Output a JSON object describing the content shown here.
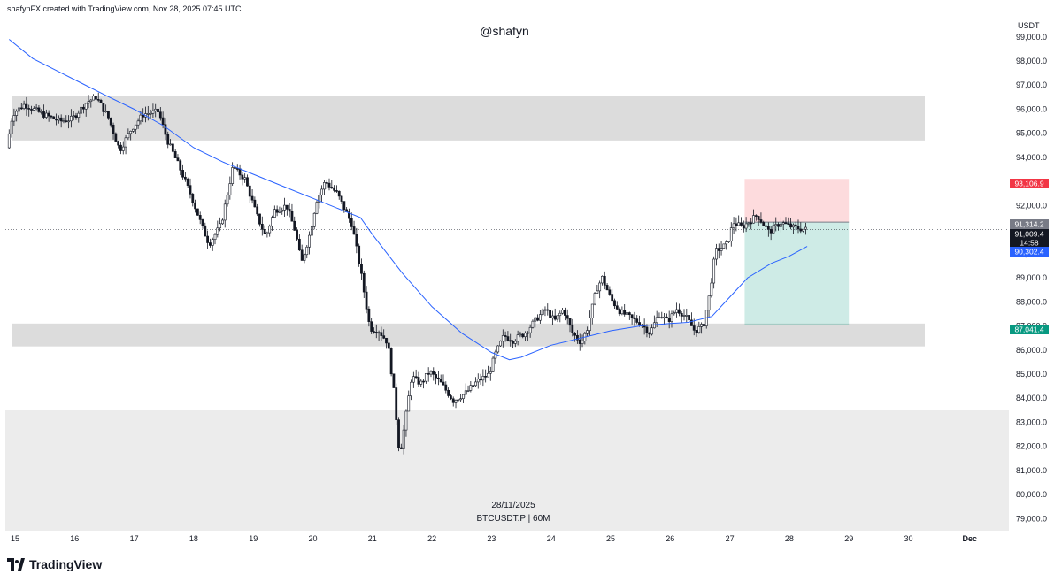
{
  "header": {
    "credit": "shafynFX created with TradingView.com, Nov 28, 2025 07:45 UTC",
    "watermark": "@shafyn"
  },
  "footer": {
    "date": "28/11/2025",
    "symbol": "BTCUSDT.P | 60M",
    "brand": "TradingView"
  },
  "colors": {
    "zone": "#dcdcdc",
    "lower_zone": "#ececec",
    "stop": "#f23645",
    "target": "#089981",
    "ma": "#2962ff",
    "last_price": "#131722"
  },
  "chart_data": {
    "type": "candlestick",
    "symbol": "BTCUSDT.P",
    "interval": "60M",
    "yunit": "USDT",
    "ylim": [
      78500,
      99800
    ],
    "yticks": [
      "99,000.0",
      "98,000.0",
      "97,000.0",
      "96,000.0",
      "95,000.0",
      "94,000.0",
      "92,000.0",
      "91,000.0",
      "90,000.0",
      "89,000.0",
      "88,000.0",
      "87,000.0",
      "86,000.0",
      "85,000.0",
      "84,000.0",
      "83,000.0",
      "82,000.0",
      "81,000.0",
      "80,000.0",
      "79,000.0"
    ],
    "x_labels": [
      "15",
      "16",
      "17",
      "18",
      "19",
      "20",
      "21",
      "22",
      "23",
      "24",
      "25",
      "26",
      "27",
      "28",
      "29",
      "30",
      "Dec"
    ],
    "price_labels": [
      {
        "id": "stop",
        "text": "93,106.9",
        "value": 93106.9,
        "color": "#f23645"
      },
      {
        "id": "high",
        "text": "91,314.2",
        "value": 91314.2,
        "color": "#787b86"
      },
      {
        "id": "last",
        "text": "91,009.4",
        "value": 91009.4,
        "color": "#131722"
      },
      {
        "id": "countdown",
        "text": "14:58",
        "value": 90750,
        "color": "#131722"
      },
      {
        "id": "ma",
        "text": "90,302.4",
        "value": 90302.4,
        "color": "#2962ff"
      },
      {
        "id": "target",
        "text": "87,041.4",
        "value": 87041.4,
        "color": "#089981"
      }
    ],
    "zones": [
      {
        "from": 94700,
        "to": 96550,
        "tone": "zone"
      },
      {
        "from": 86150,
        "to": 87100,
        "tone": "zone"
      },
      {
        "from": 78500,
        "to": 83500,
        "tone": "lower_zone"
      }
    ],
    "position": {
      "type": "short",
      "entry": 91314.2,
      "stop": 93106.9,
      "target": 87041.4,
      "start": 27.25,
      "end": 29.0
    },
    "last_price": 91009.4,
    "ma_series": [
      [
        14.9,
        98900
      ],
      [
        15.3,
        98100
      ],
      [
        15.7,
        97600
      ],
      [
        16.1,
        97100
      ],
      [
        16.5,
        96600
      ],
      [
        17.0,
        96000
      ],
      [
        17.5,
        95300
      ],
      [
        18.0,
        94400
      ],
      [
        18.5,
        93800
      ],
      [
        19.0,
        93300
      ],
      [
        19.5,
        92800
      ],
      [
        20.0,
        92300
      ],
      [
        20.5,
        91800
      ],
      [
        20.8,
        91500
      ],
      [
        21.0,
        90800
      ],
      [
        21.5,
        89200
      ],
      [
        22.0,
        87800
      ],
      [
        22.5,
        86700
      ],
      [
        23.0,
        85900
      ],
      [
        23.3,
        85600
      ],
      [
        23.5,
        85700
      ],
      [
        24.0,
        86200
      ],
      [
        24.5,
        86500
      ],
      [
        25.0,
        86800
      ],
      [
        25.5,
        87000
      ],
      [
        26.0,
        87100
      ],
      [
        26.3,
        87150
      ],
      [
        26.7,
        87400
      ],
      [
        27.0,
        88200
      ],
      [
        27.3,
        89000
      ],
      [
        27.7,
        89600
      ],
      [
        28.0,
        89900
      ],
      [
        28.3,
        90302.4
      ]
    ],
    "price_path": [
      [
        14.9,
        94400
      ],
      [
        15.0,
        95800
      ],
      [
        15.2,
        96200
      ],
      [
        15.5,
        95800
      ],
      [
        15.8,
        95500
      ],
      [
        16.0,
        95600
      ],
      [
        16.25,
        96300
      ],
      [
        16.4,
        96500
      ],
      [
        16.6,
        95700
      ],
      [
        16.8,
        94300
      ],
      [
        17.0,
        95200
      ],
      [
        17.2,
        95800
      ],
      [
        17.45,
        95900
      ],
      [
        17.6,
        94700
      ],
      [
        17.8,
        93600
      ],
      [
        18.0,
        92400
      ],
      [
        18.2,
        91000
      ],
      [
        18.3,
        90400
      ],
      [
        18.5,
        91200
      ],
      [
        18.7,
        93600
      ],
      [
        18.9,
        93100
      ],
      [
        19.1,
        91600
      ],
      [
        19.25,
        90700
      ],
      [
        19.4,
        91800
      ],
      [
        19.6,
        92000
      ],
      [
        19.75,
        90900
      ],
      [
        19.85,
        89600
      ],
      [
        20.0,
        90900
      ],
      [
        20.1,
        92200
      ],
      [
        20.25,
        93000
      ],
      [
        20.45,
        92500
      ],
      [
        20.7,
        91200
      ],
      [
        20.85,
        89200
      ],
      [
        21.0,
        86900
      ],
      [
        21.15,
        86800
      ],
      [
        21.3,
        86300
      ],
      [
        21.4,
        84300
      ],
      [
        21.5,
        81600
      ],
      [
        21.6,
        83200
      ],
      [
        21.7,
        84900
      ],
      [
        21.85,
        84600
      ],
      [
        22.0,
        85100
      ],
      [
        22.2,
        84600
      ],
      [
        22.4,
        83900
      ],
      [
        22.6,
        84200
      ],
      [
        22.8,
        84700
      ],
      [
        23.0,
        85000
      ],
      [
        23.1,
        85800
      ],
      [
        23.25,
        86600
      ],
      [
        23.4,
        86400
      ],
      [
        23.6,
        86700
      ],
      [
        23.8,
        87300
      ],
      [
        23.95,
        87700
      ],
      [
        24.1,
        87200
      ],
      [
        24.25,
        87700
      ],
      [
        24.4,
        86700
      ],
      [
        24.55,
        86300
      ],
      [
        24.65,
        86900
      ],
      [
        24.8,
        88500
      ],
      [
        24.9,
        89000
      ],
      [
        25.05,
        88100
      ],
      [
        25.2,
        87600
      ],
      [
        25.4,
        87300
      ],
      [
        25.55,
        87100
      ],
      [
        25.7,
        86700
      ],
      [
        25.85,
        87500
      ],
      [
        26.0,
        87200
      ],
      [
        26.15,
        87700
      ],
      [
        26.3,
        87400
      ],
      [
        26.45,
        86800
      ],
      [
        26.6,
        87000
      ],
      [
        26.7,
        88300
      ],
      [
        26.8,
        90100
      ],
      [
        27.0,
        90400
      ],
      [
        27.1,
        91300
      ],
      [
        27.25,
        91100
      ],
      [
        27.5,
        91600
      ],
      [
        27.7,
        90900
      ],
      [
        27.9,
        91300
      ],
      [
        28.1,
        91100
      ],
      [
        28.3,
        91009.4
      ]
    ]
  }
}
